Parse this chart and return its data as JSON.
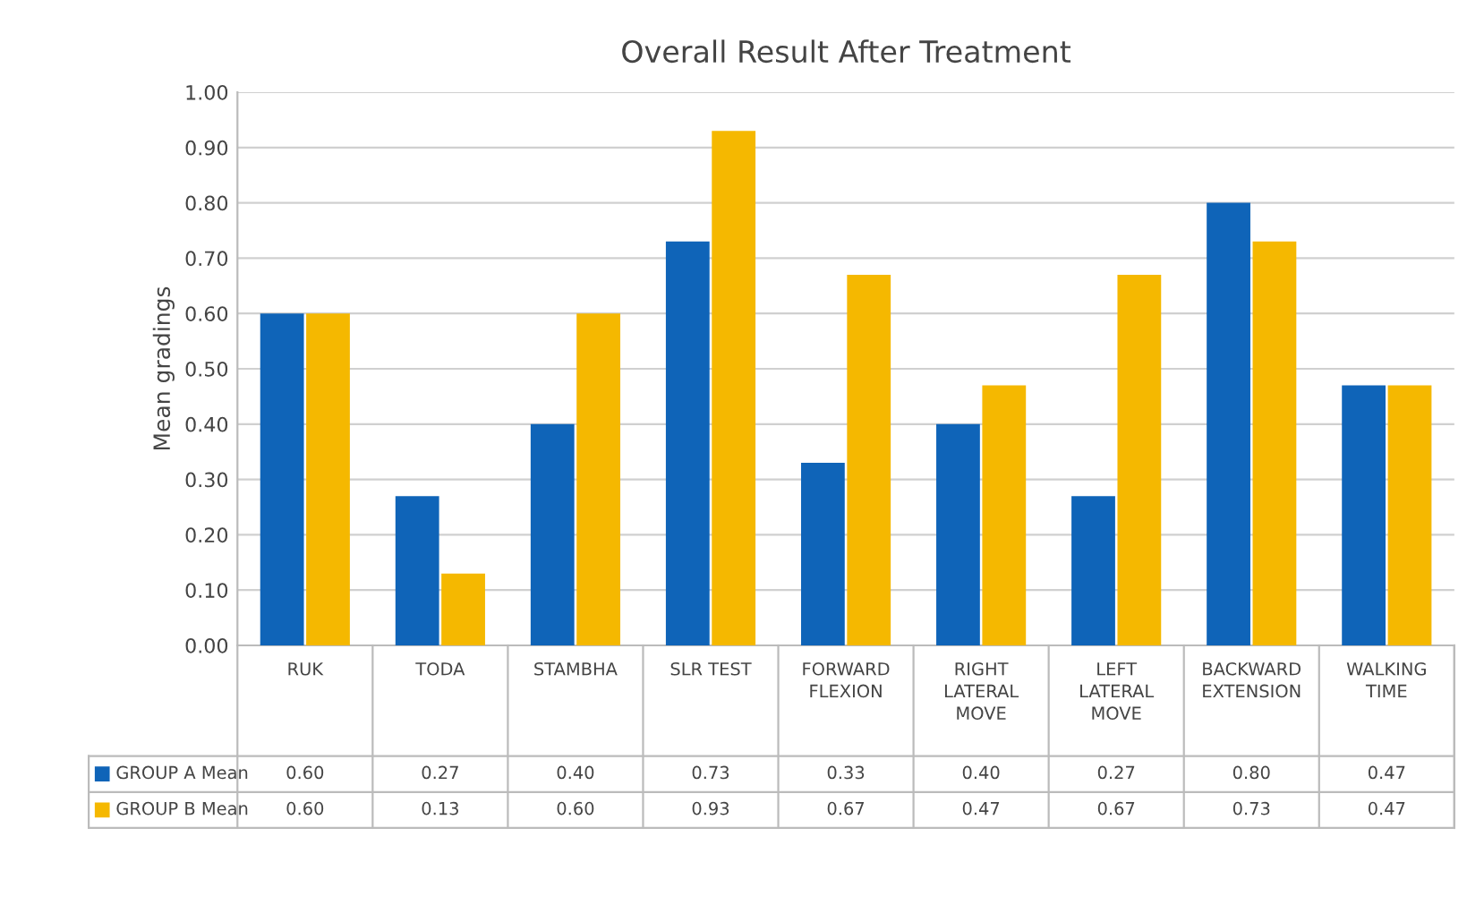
{
  "chart_data": {
    "type": "bar",
    "title": "Overall Result After Treatment",
    "ylabel": "Mean gradings",
    "categories": [
      "RUK",
      "TODA",
      "STAMBHA",
      "SLR TEST",
      "FORWARD\nFLEXION",
      "RIGHT\nLATERAL\nMOVE",
      "LEFT\nLATERAL\nMOVE",
      "BACKWARD\nEXTENSION",
      "WALKING\nTIME"
    ],
    "series": [
      {
        "name": "GROUP A Mean",
        "color": "#0f64b8",
        "values": [
          0.6,
          0.27,
          0.4,
          0.73,
          0.33,
          0.4,
          0.27,
          0.8,
          0.47
        ],
        "value_labels": [
          "0.60",
          "0.27",
          "0.40",
          "0.73",
          "0.33",
          "0.40",
          "0.27",
          "0.80",
          "0.47"
        ]
      },
      {
        "name": "GROUP B Mean",
        "color": "#f5b800",
        "values": [
          0.6,
          0.13,
          0.6,
          0.93,
          0.67,
          0.47,
          0.67,
          0.73,
          0.47
        ],
        "value_labels": [
          "0.60",
          "0.13",
          "0.60",
          "0.93",
          "0.67",
          "0.47",
          "0.67",
          "0.73",
          "0.47"
        ]
      }
    ],
    "ylim": [
      0,
      1
    ],
    "yticks": [
      {
        "value": 0,
        "label": "0.00"
      },
      {
        "value": 0.1,
        "label": "0.10"
      },
      {
        "value": 0.2,
        "label": "0.20"
      },
      {
        "value": 0.3,
        "label": "0.30"
      },
      {
        "value": 0.4,
        "label": "0.40"
      },
      {
        "value": 0.5,
        "label": "0.50"
      },
      {
        "value": 0.6,
        "label": "0.60"
      },
      {
        "value": 0.7,
        "label": "0.70"
      },
      {
        "value": 0.8,
        "label": "0.80"
      },
      {
        "value": 0.9,
        "label": "0.90"
      },
      {
        "value": 1.0,
        "label": "1.00"
      }
    ],
    "grid": "y",
    "legend": "bottom"
  }
}
